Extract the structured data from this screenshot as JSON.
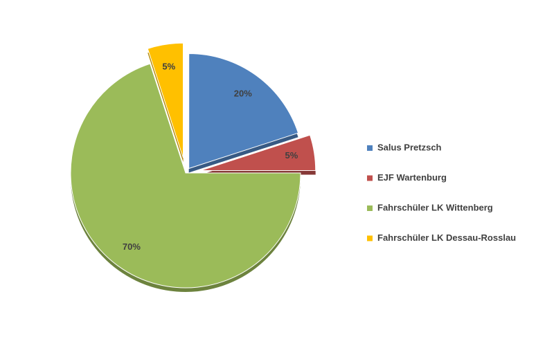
{
  "chart_data": {
    "type": "pie",
    "categories": [
      "Salus Pretzsch",
      "EJF Wartenburg",
      "Fahrschüler LK Wittenberg",
      "Fahrschüler LK Dessau-Rosslau"
    ],
    "values": [
      20,
      5,
      70,
      5
    ],
    "value_labels": [
      "20%",
      "5%",
      "70%",
      "5%"
    ],
    "colors": [
      "#4f81bd",
      "#c0504d",
      "#9bbb59",
      "#ffc000"
    ],
    "legend": "right"
  }
}
